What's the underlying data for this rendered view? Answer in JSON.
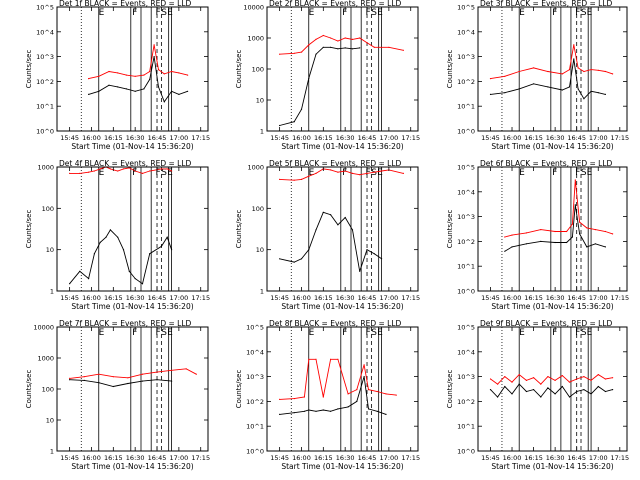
{
  "figure": {
    "start_time_label": "Start Time (01-Nov-14 15:36:20)",
    "ylabel": "Counts/sec",
    "x_tick_labels": [
      "15:45",
      "16:00",
      "16:15",
      "16:30",
      "16:45",
      "17:00",
      "17:15"
    ],
    "marker_letters": [
      "E",
      "F",
      "F",
      "S",
      "E"
    ],
    "colors": {
      "events": "#000000",
      "lld": "#ff0000",
      "axes": "#000000"
    }
  },
  "chart_data": [
    {
      "type": "line",
      "title": "Det 1f BLACK = Events, RED = LLD",
      "xlabel": "Start Time (01-Nov-14 15:36:20)",
      "ylabel": "Counts/sec",
      "y_scale": "log",
      "ylim": [
        1,
        100000
      ],
      "y_tick_labels": [
        "10^0",
        "10^1",
        "10^2",
        "10^3",
        "10^4",
        "10^5"
      ],
      "x_tick_labels": [
        "15:45",
        "16:00",
        "16:15",
        "16:30",
        "16:45",
        "17:00",
        "17:15"
      ],
      "x": [
        "15:58",
        "16:05",
        "16:12",
        "16:18",
        "16:24",
        "16:30",
        "16:36",
        "16:40",
        "16:43",
        "16:46",
        "16:50",
        "16:55",
        "17:00",
        "17:06"
      ],
      "series": [
        {
          "name": "Events",
          "values": [
            30,
            40,
            70,
            60,
            50,
            40,
            50,
            120,
            1000,
            60,
            15,
            40,
            30,
            40
          ]
        },
        {
          "name": "LLD",
          "values": [
            130,
            160,
            250,
            220,
            180,
            160,
            180,
            250,
            3000,
            300,
            200,
            250,
            220,
            180
          ]
        }
      ]
    },
    {
      "type": "line",
      "title": "Det 2f BLACK = Events, RED = LLD",
      "xlabel": "Start Time (01-Nov-14 15:36:20)",
      "ylabel": "Counts/sec",
      "y_scale": "log",
      "ylim": [
        1,
        10000
      ],
      "y_tick_labels": [
        "1",
        "10",
        "100",
        "1000",
        "10000"
      ],
      "x_tick_labels": [
        "15:45",
        "16:00",
        "16:15",
        "16:30",
        "16:45",
        "17:00",
        "17:15"
      ],
      "x": [
        "15:45",
        "15:55",
        "16:00",
        "16:05",
        "16:10",
        "16:15",
        "16:20",
        "16:25",
        "16:30",
        "16:35",
        "16:40",
        "16:45",
        "16:50",
        "17:00",
        "17:10"
      ],
      "series": [
        {
          "name": "Events",
          "values": [
            1.5,
            2,
            5,
            50,
            300,
            500,
            500,
            450,
            480,
            450,
            480,
            null,
            null,
            null,
            null
          ]
        },
        {
          "name": "LLD",
          "values": [
            300,
            320,
            350,
            600,
            900,
            1200,
            1000,
            800,
            1000,
            900,
            1000,
            700,
            500,
            500,
            400
          ]
        }
      ]
    },
    {
      "type": "line",
      "title": "Det 3f BLACK = Events, RED = LLD",
      "xlabel": "Start Time (01-Nov-14 15:36:20)",
      "ylabel": "Counts/sec",
      "y_scale": "log",
      "ylim": [
        1,
        100000
      ],
      "y_tick_labels": [
        "10^0",
        "10^1",
        "10^2",
        "10^3",
        "10^4",
        "10^5"
      ],
      "x_tick_labels": [
        "15:45",
        "16:00",
        "16:15",
        "16:30",
        "16:45",
        "17:00",
        "17:15"
      ],
      "x": [
        "15:45",
        "15:55",
        "16:05",
        "16:15",
        "16:25",
        "16:35",
        "16:40",
        "16:43",
        "16:46",
        "16:50",
        "16:55",
        "17:00",
        "17:05",
        "17:10"
      ],
      "series": [
        {
          "name": "Events",
          "values": [
            30,
            35,
            50,
            80,
            60,
            45,
            60,
            800,
            50,
            20,
            40,
            35,
            30,
            null
          ]
        },
        {
          "name": "LLD",
          "values": [
            130,
            160,
            250,
            350,
            250,
            200,
            300,
            3000,
            350,
            250,
            300,
            280,
            250,
            200
          ]
        }
      ]
    },
    {
      "type": "line",
      "title": "Det 4f BLACK = Events, RED = LLD",
      "xlabel": "Start Time (01-Nov-14 15:36:20)",
      "ylabel": "Counts/sec",
      "y_scale": "log",
      "ylim": [
        1,
        1000
      ],
      "y_tick_labels": [
        "1",
        "10",
        "100",
        "1000"
      ],
      "x_tick_labels": [
        "15:45",
        "16:00",
        "16:15",
        "16:30",
        "16:45",
        "17:00",
        "17:15"
      ],
      "x": [
        "15:45",
        "15:52",
        "15:58",
        "16:02",
        "16:06",
        "16:10",
        "16:13",
        "16:18",
        "16:22",
        "16:26",
        "16:30",
        "16:35",
        "16:40",
        "16:48",
        "16:52",
        "16:55"
      ],
      "series": [
        {
          "name": "Events",
          "values": [
            1.5,
            3,
            2,
            8,
            15,
            20,
            30,
            20,
            10,
            3,
            2,
            1.5,
            8,
            12,
            20,
            10
          ]
        },
        {
          "name": "LLD",
          "values": [
            700,
            700,
            750,
            800,
            900,
            1000,
            900,
            800,
            900,
            950,
            800,
            700,
            800,
            900,
            900,
            800
          ]
        }
      ]
    },
    {
      "type": "line",
      "title": "Det 5f BLACK = Events, RED = LLD",
      "xlabel": "Start Time (01-Nov-14 15:36:20)",
      "ylabel": "Counts/sec",
      "y_scale": "log",
      "ylim": [
        1,
        1000
      ],
      "y_tick_labels": [
        "1",
        "10",
        "100",
        "1000"
      ],
      "x_tick_labels": [
        "15:45",
        "16:00",
        "16:15",
        "16:30",
        "16:45",
        "17:00",
        "17:15"
      ],
      "x": [
        "15:45",
        "15:55",
        "16:00",
        "16:05",
        "16:10",
        "16:15",
        "16:20",
        "16:25",
        "16:30",
        "16:35",
        "16:40",
        "16:45",
        "16:50",
        "16:55",
        "17:00",
        "17:10"
      ],
      "series": [
        {
          "name": "Events",
          "values": [
            6,
            5,
            6,
            10,
            30,
            80,
            70,
            40,
            60,
            30,
            3,
            10,
            8,
            6,
            null,
            null
          ]
        },
        {
          "name": "LLD",
          "values": [
            500,
            480,
            500,
            600,
            700,
            900,
            850,
            750,
            800,
            700,
            650,
            700,
            750,
            800,
            850,
            700
          ]
        }
      ]
    },
    {
      "type": "line",
      "title": "Det 6f BLACK = Events, RED = LLD",
      "xlabel": "Start Time (01-Nov-14 15:36:20)",
      "ylabel": "Counts/sec",
      "y_scale": "log",
      "ylim": [
        1,
        100000
      ],
      "y_tick_labels": [
        "10^0",
        "10^1",
        "10^2",
        "10^3",
        "10^4",
        "10^5"
      ],
      "x_tick_labels": [
        "15:45",
        "16:00",
        "16:15",
        "16:30",
        "16:45",
        "17:00",
        "17:15"
      ],
      "x": [
        "15:55",
        "16:00",
        "16:10",
        "16:20",
        "16:30",
        "16:38",
        "16:42",
        "16:44",
        "16:47",
        "16:52",
        "16:58",
        "17:05",
        "17:10"
      ],
      "series": [
        {
          "name": "Events",
          "values": [
            40,
            60,
            80,
            100,
            90,
            90,
            150,
            3000,
            200,
            60,
            80,
            60,
            null
          ]
        },
        {
          "name": "LLD",
          "values": [
            150,
            180,
            220,
            300,
            250,
            250,
            500,
            30000,
            600,
            350,
            300,
            250,
            200
          ]
        }
      ]
    },
    {
      "type": "line",
      "title": "Det 7f BLACK = Events, RED = LLD",
      "xlabel": "Start Time (01-Nov-14 15:36:20)",
      "ylabel": "Counts/sec",
      "y_scale": "log",
      "ylim": [
        1,
        10000
      ],
      "y_tick_labels": [
        "1",
        "10",
        "100",
        "1000",
        "10000"
      ],
      "x_tick_labels": [
        "15:45",
        "16:00",
        "16:15",
        "16:30",
        "16:45",
        "17:00",
        "17:15"
      ],
      "x": [
        "15:45",
        "15:55",
        "16:05",
        "16:15",
        "16:25",
        "16:35",
        "16:45",
        "16:55",
        "17:05",
        "17:12"
      ],
      "series": [
        {
          "name": "Events",
          "values": [
            200,
            190,
            160,
            120,
            150,
            180,
            200,
            180,
            null,
            null
          ]
        },
        {
          "name": "LLD",
          "values": [
            220,
            250,
            300,
            250,
            230,
            300,
            350,
            400,
            450,
            300
          ]
        }
      ]
    },
    {
      "type": "line",
      "title": "Det 8f BLACK = Events, RED = LLD",
      "xlabel": "Start Time (01-Nov-14 15:36:20)",
      "ylabel": "Counts/sec",
      "y_scale": "log",
      "ylim": [
        1,
        100000
      ],
      "y_tick_labels": [
        "10^0",
        "10^1",
        "10^2",
        "10^3",
        "10^4",
        "10^5"
      ],
      "x_tick_labels": [
        "15:45",
        "16:00",
        "16:15",
        "16:30",
        "16:45",
        "17:00",
        "17:15"
      ],
      "x": [
        "15:45",
        "15:55",
        "16:02",
        "16:05",
        "16:10",
        "16:15",
        "16:20",
        "16:25",
        "16:32",
        "16:38",
        "16:43",
        "16:46",
        "16:52",
        "16:58",
        "17:05"
      ],
      "series": [
        {
          "name": "Events",
          "values": [
            30,
            35,
            40,
            45,
            40,
            45,
            40,
            50,
            60,
            100,
            1000,
            50,
            40,
            30,
            null
          ]
        },
        {
          "name": "LLD",
          "values": [
            120,
            130,
            150,
            5000,
            5000,
            150,
            5000,
            5000,
            200,
            300,
            3000,
            300,
            250,
            200,
            180
          ]
        }
      ]
    },
    {
      "type": "line",
      "title": "Det 9f BLACK = Events, RED = LLD",
      "xlabel": "Start Time (01-Nov-14 15:36:20)",
      "ylabel": "Counts/sec",
      "y_scale": "log",
      "ylim": [
        1,
        100000
      ],
      "y_tick_labels": [
        "10^0",
        "10^1",
        "10^2",
        "10^3",
        "10^4",
        "10^5"
      ],
      "x_tick_labels": [
        "15:45",
        "16:00",
        "16:15",
        "16:30",
        "16:45",
        "17:00",
        "17:15"
      ],
      "x": [
        "15:45",
        "15:50",
        "15:55",
        "16:00",
        "16:05",
        "16:10",
        "16:15",
        "16:20",
        "16:25",
        "16:30",
        "16:35",
        "16:40",
        "16:45",
        "16:50",
        "16:55",
        "17:00",
        "17:05",
        "17:10"
      ],
      "series": [
        {
          "name": "Events",
          "values": [
            300,
            150,
            400,
            200,
            500,
            250,
            300,
            150,
            350,
            200,
            400,
            150,
            250,
            300,
            200,
            400,
            250,
            300
          ]
        },
        {
          "name": "LLD",
          "values": [
            800,
            500,
            1000,
            600,
            1200,
            700,
            900,
            500,
            1000,
            700,
            1100,
            600,
            800,
            1000,
            700,
            1200,
            800,
            900
          ]
        }
      ]
    }
  ]
}
